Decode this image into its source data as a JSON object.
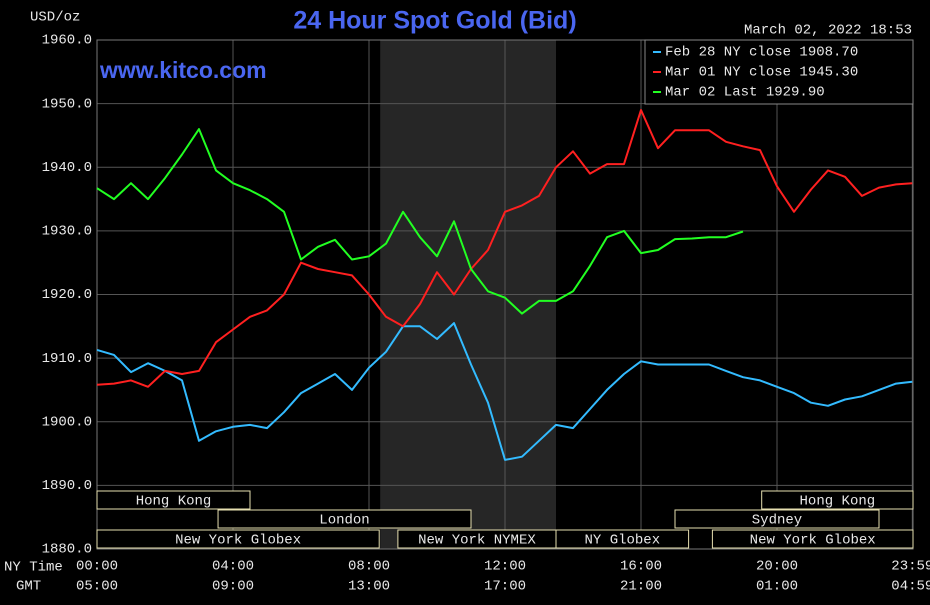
{
  "chart_data": {
    "type": "line",
    "title": "24 Hour Spot Gold (Bid)",
    "source": "www.kitco.com",
    "timestamp": "March 02, 2022 18:53",
    "ylabel": "USD/oz",
    "xlabel": "NY Time",
    "x2label": "GMT",
    "xlim": [
      0,
      24
    ],
    "ylim": [
      1880,
      1960
    ],
    "grid": true,
    "legend": "upper right",
    "yticks": [
      {
        "value": 1880,
        "label": "1880.0"
      },
      {
        "value": 1890,
        "label": "1890.0"
      },
      {
        "value": 1900,
        "label": "1900.0"
      },
      {
        "value": 1910,
        "label": "1910.0"
      },
      {
        "value": 1920,
        "label": "1920.0"
      },
      {
        "value": 1930,
        "label": "1930.0"
      },
      {
        "value": 1940,
        "label": "1940.0"
      },
      {
        "value": 1950,
        "label": "1950.0"
      },
      {
        "value": 1960,
        "label": "1960.0"
      }
    ],
    "xticks": [
      {
        "value": 0,
        "label": "00:00"
      },
      {
        "value": 4,
        "label": "04:00"
      },
      {
        "value": 8,
        "label": "08:00"
      },
      {
        "value": 12,
        "label": "12:00"
      },
      {
        "value": 16,
        "label": "16:00"
      },
      {
        "value": 20,
        "label": "20:00"
      },
      {
        "value": 23.98,
        "label": "23:59"
      }
    ],
    "gmt_labels": [
      "05:00",
      "09:00",
      "13:00",
      "17:00",
      "21:00",
      "01:00",
      "04:59"
    ],
    "shade": [
      8.33,
      13.5
    ],
    "sessions": [
      {
        "label": "Hong Kong",
        "row": 1,
        "start": 0,
        "end": 4.5
      },
      {
        "label": "London",
        "row": 2,
        "start": 3.56,
        "end": 11
      },
      {
        "label": "New York Globex",
        "row": 3,
        "start": 0,
        "end": 8.3
      },
      {
        "label": "New York NYMEX",
        "row": 3,
        "start": 8.85,
        "end": 13.5
      },
      {
        "label": "NY Globex",
        "row": 3,
        "start": 13.5,
        "end": 17.4
      },
      {
        "label": "Hong Kong",
        "row": 1,
        "start": 19.55,
        "end": 24
      },
      {
        "label": "Sydney",
        "row": 2,
        "start": 17,
        "end": 23
      },
      {
        "label": "New York Globex",
        "row": 3,
        "start": 18.1,
        "end": 24
      }
    ],
    "x": [
      0,
      0.5,
      1,
      1.5,
      2,
      2.5,
      3,
      3.5,
      4,
      4.5,
      5,
      5.5,
      6,
      6.5,
      7,
      7.5,
      8,
      8.5,
      9,
      9.5,
      10,
      10.5,
      11,
      11.5,
      12,
      12.5,
      13,
      13.5,
      14,
      14.5,
      15,
      15.5,
      16,
      16.5,
      17,
      17.5,
      18,
      18.5,
      19,
      19.5,
      20,
      20.5,
      21,
      21.5,
      22,
      22.5,
      23,
      23.5,
      23.98
    ],
    "series": [
      {
        "name": "Feb 28 NY close 1908.70",
        "color": "#33bbff",
        "values": [
          1911.3,
          1910.5,
          1907.8,
          1909.2,
          1908,
          1906.5,
          1897,
          1898.5,
          1899.2,
          1899.5,
          1899,
          1901.5,
          1904.5,
          1906,
          1907.5,
          1905,
          1908.5,
          1911,
          1915,
          1915,
          1913,
          1915.5,
          1909,
          1903,
          1894,
          1894.5,
          1897,
          1899.5,
          1899,
          1902,
          1905,
          1907.5,
          1909.5,
          1909,
          1909,
          1909,
          1909,
          1908,
          1907,
          1906.5,
          1905.5,
          1904.5,
          1903,
          1902.5,
          1903.5,
          1904,
          1905,
          1906,
          1906.3
        ]
      },
      {
        "name": "Mar 01 NY close 1945.30",
        "color": "#ff2020",
        "values": [
          1905.8,
          1906,
          1906.5,
          1905.5,
          1908,
          1907.5,
          1908,
          1912.5,
          1914.5,
          1916.5,
          1917.5,
          1920,
          1925,
          1924,
          1923.5,
          1923,
          1920,
          1916.5,
          1915,
          1918.5,
          1923.5,
          1920,
          1924,
          1927,
          1933,
          1934,
          1935.5,
          1940,
          1942.5,
          1939,
          1940.5,
          1940.5,
          1949,
          1943,
          1945.8,
          1945.8,
          1945.8,
          1944,
          1943.3,
          1942.7,
          1937,
          1933,
          1936.5,
          1939.5,
          1938.5,
          1935.5,
          1936.8,
          1937.3,
          1937.5
        ]
      },
      {
        "name": "Mar 02 Last 1929.90",
        "color": "#22ff22",
        "values": [
          1936.7,
          1935,
          1937.5,
          1935,
          1938.3,
          1942,
          1946,
          1939.5,
          1937.5,
          1936.4,
          1935,
          1933,
          1925.5,
          1927.5,
          1928.6,
          1925.5,
          1926,
          1928,
          1933,
          1929,
          1926,
          1931.5,
          1924,
          1920.5,
          1919.5,
          1917,
          1919,
          1919,
          1920.5,
          1924.5,
          1929,
          1930,
          1926.5,
          1927,
          1928.7,
          1928.8,
          1929,
          1929,
          1929.9,
          null,
          null,
          null,
          null,
          null,
          null,
          null,
          null,
          null,
          null
        ]
      }
    ]
  }
}
